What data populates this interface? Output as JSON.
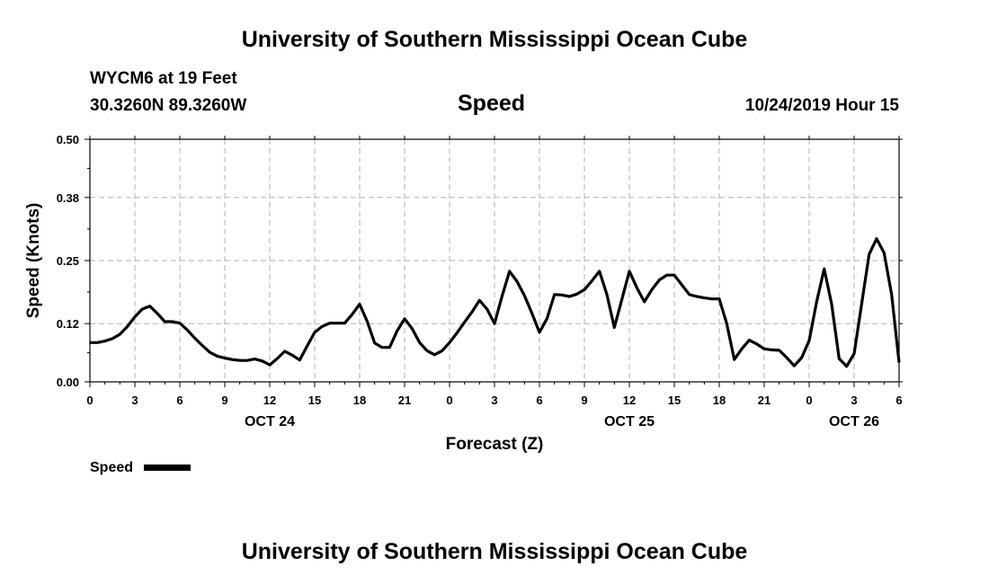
{
  "header": {
    "top_title": "University of Southern Mississippi Ocean Cube",
    "station": "WYCM6 at 19 Feet",
    "coords": "30.3260N 89.3260W",
    "chart_title": "Speed",
    "datetime": "10/24/2019 Hour 15",
    "bottom_title": "University of Southern Mississippi Ocean Cube"
  },
  "legend": {
    "label": "Speed",
    "color": "#000000"
  },
  "chart_data": {
    "type": "line",
    "title": "Speed",
    "xlabel": "Forecast (Z)",
    "ylabel": "Speed (Knots)",
    "x_unit": "hours (Z), from 00Z OCT 24",
    "xlim": [
      0,
      54
    ],
    "ylim": [
      0,
      0.5
    ],
    "grid": true,
    "legend_position": "bottom-left",
    "y_ticks": [
      "0.00",
      "0.12",
      "0.25",
      "0.38",
      "0.50"
    ],
    "x_ticks": [
      "0",
      "3",
      "6",
      "9",
      "12",
      "15",
      "18",
      "21",
      "0",
      "3",
      "6",
      "9",
      "12",
      "15",
      "18",
      "21",
      "0",
      "3",
      "6"
    ],
    "day_labels": [
      {
        "label": "OCT 24",
        "x": 12
      },
      {
        "label": "OCT 25",
        "x": 36
      },
      {
        "label": "OCT 26",
        "x": 51
      }
    ],
    "series": [
      {
        "name": "Speed",
        "color": "#000000",
        "x": [
          0,
          0.5,
          1,
          1.5,
          2,
          2.5,
          3,
          3.5,
          4,
          4.5,
          5,
          5.5,
          6,
          6.5,
          7,
          7.5,
          8,
          8.5,
          9,
          9.5,
          10,
          10.5,
          11,
          11.5,
          12,
          12.5,
          13,
          13.5,
          14,
          14.5,
          15,
          15.5,
          16,
          16.5,
          17,
          17.5,
          18,
          18.5,
          19,
          19.5,
          20,
          20.5,
          21,
          21.5,
          22,
          22.5,
          23,
          23.5,
          24,
          24.5,
          25,
          25.5,
          26,
          26.5,
          27,
          27.5,
          28,
          28.5,
          29,
          29.5,
          30,
          30.5,
          31,
          31.5,
          32,
          32.5,
          33,
          33.5,
          34,
          34.5,
          35,
          35.5,
          36,
          36.5,
          37,
          37.5,
          38,
          38.5,
          39,
          39.5,
          40,
          40.5,
          41,
          41.5,
          42,
          42.5,
          43,
          43.5,
          44,
          44.5,
          45,
          45.5,
          46,
          46.5,
          47,
          47.5,
          48,
          48.5,
          49,
          49.5,
          50,
          50.5,
          51,
          51.5,
          52,
          52.5,
          53,
          53.5,
          54
        ],
        "values": [
          0.081,
          0.081,
          0.084,
          0.089,
          0.098,
          0.114,
          0.134,
          0.15,
          0.156,
          0.141,
          0.124,
          0.124,
          0.121,
          0.107,
          0.09,
          0.075,
          0.061,
          0.053,
          0.049,
          0.046,
          0.044,
          0.044,
          0.047,
          0.043,
          0.035,
          0.048,
          0.063,
          0.055,
          0.045,
          0.074,
          0.102,
          0.114,
          0.121,
          0.121,
          0.121,
          0.139,
          0.16,
          0.125,
          0.08,
          0.071,
          0.071,
          0.105,
          0.13,
          0.11,
          0.081,
          0.064,
          0.056,
          0.064,
          0.081,
          0.101,
          0.123,
          0.144,
          0.168,
          0.15,
          0.12,
          0.176,
          0.228,
          0.207,
          0.178,
          0.141,
          0.102,
          0.13,
          0.18,
          0.179,
          0.176,
          0.181,
          0.19,
          0.208,
          0.228,
          0.18,
          0.112,
          0.17,
          0.228,
          0.194,
          0.165,
          0.19,
          0.21,
          0.22,
          0.22,
          0.2,
          0.18,
          0.176,
          0.173,
          0.171,
          0.171,
          0.12,
          0.046,
          0.068,
          0.086,
          0.078,
          0.068,
          0.066,
          0.065,
          0.05,
          0.033,
          0.05,
          0.085,
          0.165,
          0.233,
          0.16,
          0.048,
          0.032,
          0.058,
          0.16,
          0.263,
          0.295,
          0.266,
          0.18,
          0.04
        ]
      }
    ]
  }
}
